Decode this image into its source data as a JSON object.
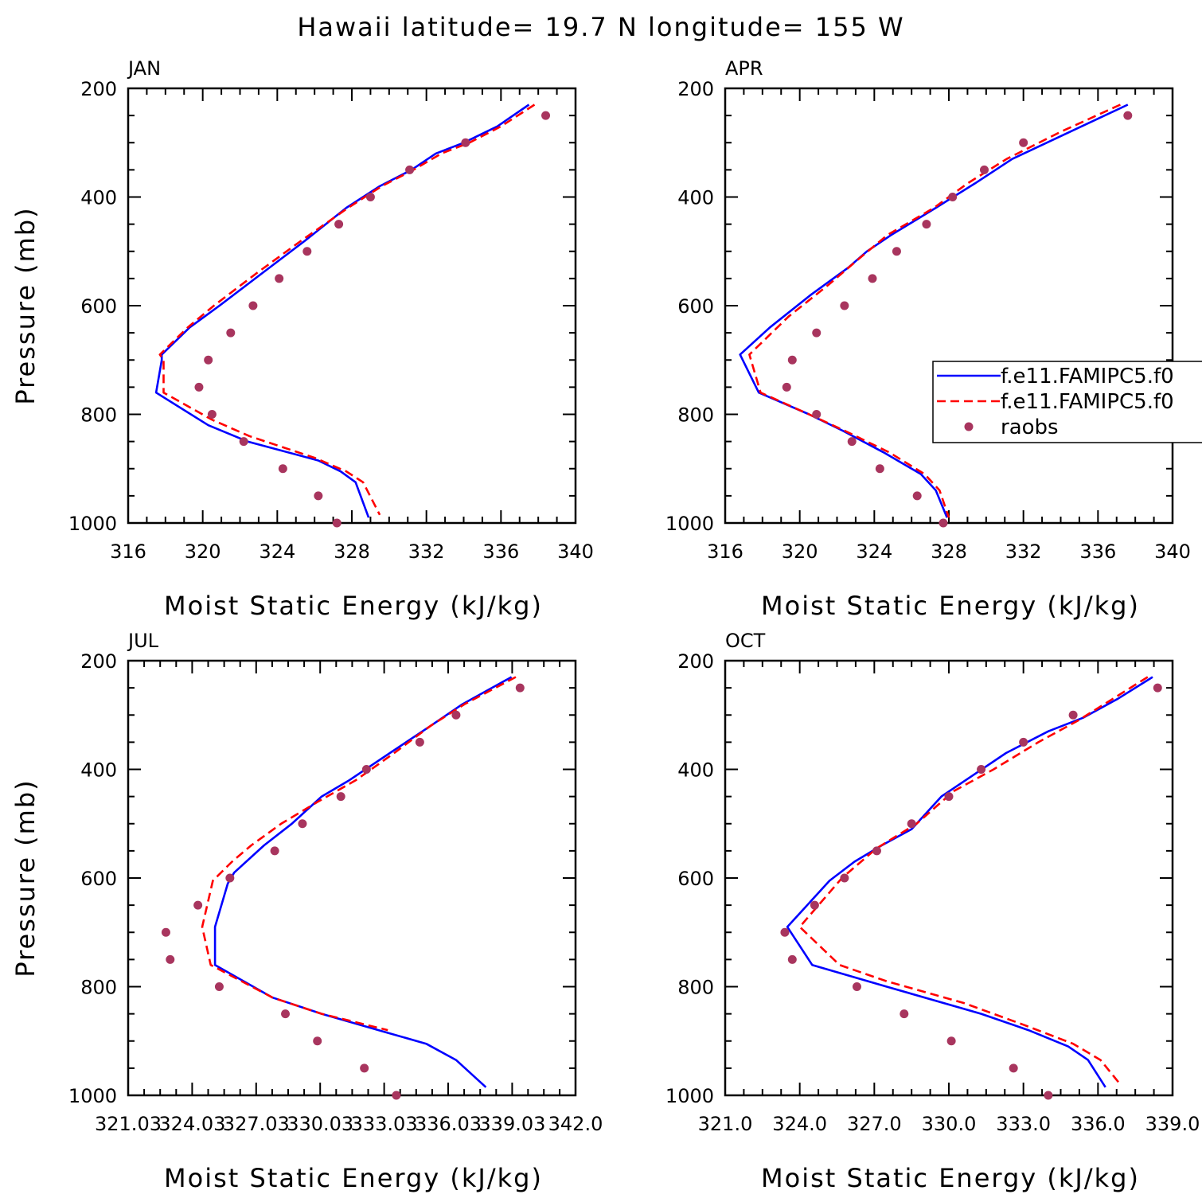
{
  "title": "Hawaii  latitude= 19.7 N longitude= 155 W",
  "colors": {
    "model1": "#0000ff",
    "model2": "#ff0000",
    "raobs": "#a8355e",
    "axis": "#000000"
  },
  "legend": {
    "placement": "right of APR panel",
    "entries": [
      {
        "label": "f.e11.FAMIPC5.f0",
        "style": "solid",
        "color": "#0000ff"
      },
      {
        "label": "f.e11.FAMIPC5.f0",
        "style": "dashed",
        "color": "#ff0000"
      },
      {
        "label": "raobs",
        "style": "dot",
        "color": "#a8355e"
      }
    ]
  },
  "chart_data": [
    {
      "type": "line",
      "panel_title": "JAN",
      "xlabel": "Moist Static Energy (kJ/kg)",
      "ylabel": "Pressure (mb)",
      "xlim": [
        316,
        340
      ],
      "ylim": [
        1000,
        200
      ],
      "xticks": [
        316,
        320,
        324,
        328,
        332,
        336,
        340
      ],
      "xticklabels": [
        "316",
        "320",
        "324",
        "328",
        "332",
        "336",
        "340"
      ],
      "yticks": [
        200,
        400,
        600,
        800,
        1000
      ],
      "yticklabels": [
        "200",
        "400",
        "600",
        "800",
        "1000"
      ],
      "series": [
        {
          "style": "solid",
          "color": "#0000ff",
          "points": [
            [
              337.5,
              230
            ],
            [
              335.8,
              270
            ],
            [
              334.0,
              300
            ],
            [
              332.5,
              320
            ],
            [
              331.2,
              350
            ],
            [
              329.5,
              380
            ],
            [
              327.7,
              420
            ],
            [
              325.5,
              480
            ],
            [
              323.2,
              540
            ],
            [
              320.9,
              600
            ],
            [
              319.3,
              640
            ],
            [
              317.8,
              690
            ],
            [
              317.8,
              700
            ],
            [
              317.5,
              760
            ],
            [
              320.3,
              820
            ],
            [
              322.4,
              850
            ],
            [
              326.2,
              885
            ],
            [
              327.4,
              905
            ],
            [
              328.2,
              925
            ],
            [
              328.9,
              990
            ]
          ]
        },
        {
          "style": "dashed",
          "color": "#ff0000",
          "points": [
            [
              337.8,
              230
            ],
            [
              336.0,
              270
            ],
            [
              334.3,
              300
            ],
            [
              332.8,
              320
            ],
            [
              331.3,
              350
            ],
            [
              329.6,
              380
            ],
            [
              327.8,
              420
            ],
            [
              325.3,
              480
            ],
            [
              322.9,
              540
            ],
            [
              320.6,
              600
            ],
            [
              319.2,
              640
            ],
            [
              317.7,
              690
            ],
            [
              317.9,
              700
            ],
            [
              317.9,
              760
            ],
            [
              320.5,
              810
            ],
            [
              322.5,
              840
            ],
            [
              326.0,
              880
            ],
            [
              327.7,
              905
            ],
            [
              328.6,
              925
            ],
            [
              329.5,
              985
            ]
          ]
        },
        {
          "style": "dot",
          "color": "#a8355e",
          "points": [
            [
              338.4,
              250
            ],
            [
              334.1,
              300
            ],
            [
              331.1,
              350
            ],
            [
              329.0,
              400
            ],
            [
              327.3,
              450
            ],
            [
              325.6,
              500
            ],
            [
              324.1,
              550
            ],
            [
              322.7,
              600
            ],
            [
              321.5,
              650
            ],
            [
              320.3,
              700
            ],
            [
              319.8,
              750
            ],
            [
              320.5,
              800
            ],
            [
              322.2,
              850
            ],
            [
              324.3,
              900
            ],
            [
              326.2,
              950
            ],
            [
              327.2,
              1000
            ]
          ]
        }
      ]
    },
    {
      "type": "line",
      "panel_title": "APR",
      "xlabel": "Moist Static Energy (kJ/kg)",
      "ylabel": "",
      "xlim": [
        316,
        340
      ],
      "ylim": [
        1000,
        200
      ],
      "xticks": [
        316,
        320,
        324,
        328,
        332,
        336,
        340
      ],
      "xticklabels": [
        "316",
        "320",
        "324",
        "328",
        "332",
        "336",
        "340"
      ],
      "yticks": [
        200,
        400,
        600,
        800,
        1000
      ],
      "yticklabels": [
        "200",
        "400",
        "600",
        "800",
        "1000"
      ],
      "series": [
        {
          "style": "solid",
          "color": "#0000ff",
          "points": [
            [
              337.6,
              230
            ],
            [
              334.5,
              280
            ],
            [
              331.4,
              330
            ],
            [
              329.4,
              375
            ],
            [
              327.3,
              420
            ],
            [
              324.9,
              470
            ],
            [
              323.6,
              500
            ],
            [
              322.6,
              530
            ],
            [
              320.6,
              580
            ],
            [
              318.4,
              640
            ],
            [
              316.8,
              690
            ],
            [
              317.8,
              760
            ],
            [
              320.5,
              800
            ],
            [
              322.3,
              830
            ],
            [
              324.5,
              870
            ],
            [
              326.5,
              910
            ],
            [
              327.3,
              940
            ],
            [
              327.9,
              990
            ]
          ]
        },
        {
          "style": "dashed",
          "color": "#ff0000",
          "points": [
            [
              337.2,
              230
            ],
            [
              334.0,
              280
            ],
            [
              331.1,
              330
            ],
            [
              329.0,
              375
            ],
            [
              327.2,
              420
            ],
            [
              324.7,
              470
            ],
            [
              323.3,
              510
            ],
            [
              321.6,
              560
            ],
            [
              319.4,
              620
            ],
            [
              317.3,
              690
            ],
            [
              317.9,
              760
            ],
            [
              320.5,
              800
            ],
            [
              322.4,
              830
            ],
            [
              324.8,
              870
            ],
            [
              326.7,
              910
            ],
            [
              327.5,
              940
            ],
            [
              328.0,
              990
            ]
          ]
        },
        {
          "style": "dot",
          "color": "#a8355e",
          "points": [
            [
              337.6,
              250
            ],
            [
              332.0,
              300
            ],
            [
              329.9,
              350
            ],
            [
              328.2,
              400
            ],
            [
              326.8,
              450
            ],
            [
              325.2,
              500
            ],
            [
              323.9,
              550
            ],
            [
              322.4,
              600
            ],
            [
              320.9,
              650
            ],
            [
              319.6,
              700
            ],
            [
              319.3,
              750
            ],
            [
              320.9,
              800
            ],
            [
              322.8,
              850
            ],
            [
              324.3,
              900
            ],
            [
              326.3,
              950
            ],
            [
              327.7,
              1000
            ]
          ]
        }
      ]
    },
    {
      "type": "line",
      "panel_title": "JUL",
      "xlabel": "Moist Static Energy (kJ/kg)",
      "ylabel": "Pressure (mb)",
      "xlim": [
        321.03,
        342.0
      ],
      "ylim": [
        1000,
        200
      ],
      "xticks": [
        321.03,
        324.03,
        327.03,
        330.03,
        333.03,
        336.03,
        339.03,
        342.0
      ],
      "xticklabels": [
        "321.03",
        "324.03",
        "327.03",
        "330.03",
        "333.03",
        "336.03",
        "339.03",
        "342.0"
      ],
      "yticks": [
        200,
        400,
        600,
        800,
        1000
      ],
      "yticklabels": [
        "200",
        "400",
        "600",
        "800",
        "1000"
      ],
      "series": [
        {
          "style": "solid",
          "color": "#0000ff",
          "points": [
            [
              339.0,
              230
            ],
            [
              336.7,
              280
            ],
            [
              335.2,
              320
            ],
            [
              333.3,
              370
            ],
            [
              331.4,
              420
            ],
            [
              330.1,
              450
            ],
            [
              328.7,
              500
            ],
            [
              327.4,
              540
            ],
            [
              326.0,
              590
            ],
            [
              325.7,
              610
            ],
            [
              325.1,
              690
            ],
            [
              325.1,
              760
            ],
            [
              327.8,
              820
            ],
            [
              330.1,
              850
            ],
            [
              333.2,
              885
            ],
            [
              335.0,
              905
            ],
            [
              336.4,
              935
            ],
            [
              337.8,
              985
            ]
          ]
        },
        {
          "style": "dashed",
          "color": "#ff0000",
          "points": [
            [
              339.2,
              230
            ],
            [
              336.8,
              280
            ],
            [
              335.2,
              320
            ],
            [
              333.5,
              370
            ],
            [
              331.7,
              420
            ],
            [
              329.9,
              460
            ],
            [
              328.2,
              500
            ],
            [
              326.8,
              540
            ],
            [
              325.9,
              570
            ],
            [
              325.0,
              605
            ],
            [
              324.5,
              690
            ],
            [
              324.9,
              760
            ],
            [
              327.8,
              820
            ],
            [
              330.1,
              850
            ],
            [
              333.2,
              880
            ]
          ]
        },
        {
          "style": "dot",
          "color": "#a8355e",
          "points": [
            [
              339.4,
              250
            ],
            [
              336.4,
              300
            ],
            [
              334.7,
              350
            ],
            [
              332.2,
              400
            ],
            [
              331.0,
              450
            ],
            [
              329.2,
              500
            ],
            [
              327.9,
              550
            ],
            [
              325.8,
              600
            ],
            [
              324.3,
              650
            ],
            [
              322.8,
              700
            ],
            [
              323.0,
              750
            ],
            [
              325.3,
              800
            ],
            [
              328.4,
              850
            ],
            [
              329.9,
              900
            ],
            [
              332.1,
              950
            ],
            [
              333.6,
              1000
            ]
          ]
        }
      ]
    },
    {
      "type": "line",
      "panel_title": "OCT",
      "xlabel": "Moist Static Energy (kJ/kg)",
      "ylabel": "",
      "xlim": [
        321.0,
        339.0
      ],
      "ylim": [
        1000,
        200
      ],
      "xticks": [
        321.0,
        324.0,
        327.0,
        330.0,
        333.0,
        336.0,
        339.0
      ],
      "xticklabels": [
        "321.0",
        "324.0",
        "327.0",
        "330.0",
        "333.0",
        "336.0",
        "339.0"
      ],
      "yticks": [
        200,
        400,
        600,
        800,
        1000
      ],
      "yticklabels": [
        "200",
        "400",
        "600",
        "800",
        "1000"
      ],
      "series": [
        {
          "style": "solid",
          "color": "#0000ff",
          "points": [
            [
              338.2,
              230
            ],
            [
              336.8,
              270
            ],
            [
              335.4,
              305
            ],
            [
              334.0,
              330
            ],
            [
              332.3,
              370
            ],
            [
              331.0,
              410
            ],
            [
              329.7,
              450
            ],
            [
              328.5,
              510
            ],
            [
              327.3,
              540
            ],
            [
              326.2,
              570
            ],
            [
              325.2,
              605
            ],
            [
              323.5,
              690
            ],
            [
              324.5,
              760
            ],
            [
              327.5,
              800
            ],
            [
              331.3,
              850
            ],
            [
              333.2,
              880
            ],
            [
              334.8,
              910
            ],
            [
              335.6,
              935
            ],
            [
              336.3,
              985
            ]
          ]
        },
        {
          "style": "dashed",
          "color": "#ff0000",
          "points": [
            [
              338.0,
              230
            ],
            [
              336.6,
              270
            ],
            [
              335.2,
              310
            ],
            [
              333.6,
              350
            ],
            [
              331.8,
              400
            ],
            [
              330.2,
              440
            ],
            [
              328.7,
              500
            ],
            [
              327.1,
              545
            ],
            [
              325.7,
              600
            ],
            [
              324.0,
              690
            ],
            [
              325.6,
              760
            ],
            [
              327.5,
              790
            ],
            [
              330.6,
              830
            ],
            [
              333.0,
              870
            ],
            [
              335.0,
              905
            ],
            [
              336.1,
              935
            ],
            [
              336.9,
              980
            ]
          ]
        },
        {
          "style": "dot",
          "color": "#a8355e",
          "points": [
            [
              338.4,
              250
            ],
            [
              335.0,
              300
            ],
            [
              333.0,
              350
            ],
            [
              331.3,
              400
            ],
            [
              330.0,
              450
            ],
            [
              328.5,
              500
            ],
            [
              327.1,
              550
            ],
            [
              325.8,
              600
            ],
            [
              324.6,
              650
            ],
            [
              323.4,
              700
            ],
            [
              323.7,
              750
            ],
            [
              326.3,
              800
            ],
            [
              328.2,
              850
            ],
            [
              330.1,
              900
            ],
            [
              332.6,
              950
            ],
            [
              334.0,
              1000
            ]
          ]
        }
      ]
    }
  ]
}
